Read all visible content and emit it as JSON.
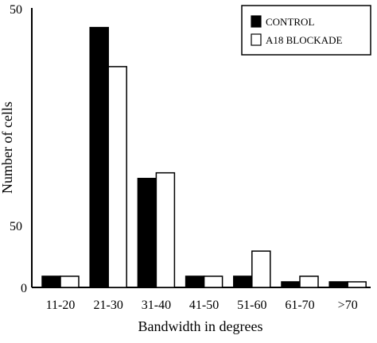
{
  "chart_data": {
    "type": "bar",
    "title": "",
    "xlabel": "Bandwidth in degrees",
    "ylabel": "Number of cells",
    "ylim": [
      0,
      50
    ],
    "y_ticks": [
      "0",
      "50"
    ],
    "categories": [
      "11-20",
      "21-30",
      "31-40",
      "41-50",
      "51-60",
      "61-70",
      ">70"
    ],
    "series": [
      {
        "name": "CONTROL",
        "values": [
          2,
          46.5,
          19.5,
          2,
          2,
          1,
          1
        ],
        "color": "#000000"
      },
      {
        "name": "A18 BLOCKADE",
        "values": [
          2,
          39.5,
          20.5,
          2,
          6.5,
          2,
          1
        ],
        "color": "#ffffff"
      }
    ],
    "legend": {
      "placement": "top-right"
    },
    "grid": false
  }
}
